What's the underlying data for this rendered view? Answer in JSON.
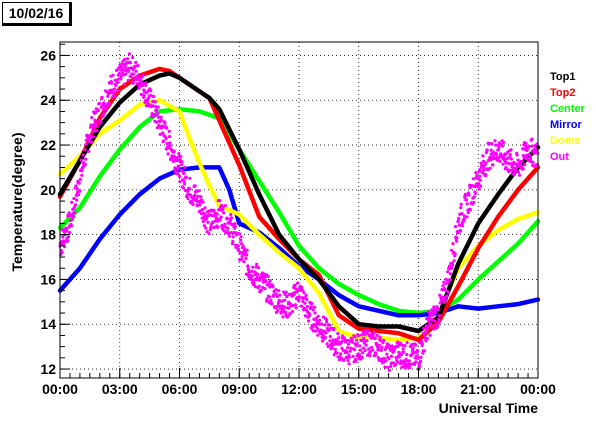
{
  "title": "10/02/16",
  "chart_data": {
    "type": "line",
    "title": "10/02/16",
    "xlabel": "Universal Time",
    "ylabel": "Temperature(degree)",
    "xlim": [
      0,
      24
    ],
    "ylim": [
      11.6,
      26.6
    ],
    "x_ticks": [
      "00:00",
      "03:00",
      "06:00",
      "09:00",
      "12:00",
      "15:00",
      "18:00",
      "21:00",
      "00:00"
    ],
    "y_ticks": [
      12,
      14,
      16,
      18,
      20,
      22,
      24,
      26
    ],
    "grid": true,
    "legend_position": "right",
    "series": [
      {
        "name": "Top1",
        "color": "#000000",
        "x": [
          0,
          1,
          2,
          3,
          4,
          5,
          5.5,
          6,
          7,
          7.5,
          8,
          9,
          10,
          11,
          12,
          13,
          14,
          15,
          16,
          17,
          18,
          19,
          20,
          21,
          22,
          23,
          24
        ],
        "y": [
          19.8,
          21.3,
          22.8,
          23.9,
          24.7,
          25.1,
          25.2,
          25.0,
          24.4,
          24.1,
          23.6,
          21.8,
          19.8,
          18.0,
          16.9,
          16.0,
          14.8,
          14.0,
          13.9,
          13.9,
          13.7,
          14.3,
          16.7,
          18.5,
          19.8,
          21.0,
          21.9
        ]
      },
      {
        "name": "Top2",
        "color": "#ff0000",
        "x": [
          0,
          1,
          2,
          3,
          4,
          5,
          5.5,
          6,
          7,
          7.5,
          8,
          9,
          10,
          11,
          12,
          13,
          14,
          15,
          16,
          17,
          18,
          19,
          20,
          21,
          22,
          23,
          24
        ],
        "y": [
          19.7,
          21.3,
          23.2,
          24.5,
          25.1,
          25.4,
          25.3,
          25.0,
          24.4,
          24.1,
          23.1,
          21.1,
          18.8,
          17.8,
          16.9,
          16.2,
          14.4,
          13.8,
          13.7,
          13.6,
          13.3,
          14.1,
          15.7,
          17.4,
          18.8,
          20.0,
          21.0
        ]
      },
      {
        "name": "Center",
        "color": "#00ff00",
        "x": [
          0,
          1,
          2,
          3,
          4,
          5,
          6,
          7,
          8,
          9,
          10,
          11,
          12,
          13,
          14,
          15,
          16,
          17,
          18,
          19,
          20,
          21,
          22,
          23,
          24
        ],
        "y": [
          18.3,
          19.2,
          20.6,
          21.8,
          22.8,
          23.5,
          23.6,
          23.5,
          23.2,
          21.8,
          20.4,
          19.0,
          17.5,
          16.5,
          15.8,
          15.3,
          14.9,
          14.6,
          14.5,
          14.6,
          15.1,
          16.0,
          16.8,
          17.6,
          18.6
        ]
      },
      {
        "name": "Mirror",
        "color": "#0000ff",
        "x": [
          0,
          1,
          2,
          3,
          4,
          5,
          6,
          7,
          8,
          8.5,
          9,
          10,
          11,
          12,
          13,
          14,
          15,
          16,
          17,
          18,
          19,
          20,
          21,
          22,
          23,
          24
        ],
        "y": [
          15.5,
          16.5,
          17.8,
          18.9,
          19.8,
          20.5,
          20.9,
          21.0,
          21.0,
          20.0,
          18.5,
          18.1,
          17.4,
          16.6,
          16.0,
          15.3,
          14.8,
          14.6,
          14.4,
          14.4,
          14.5,
          14.8,
          14.7,
          14.8,
          14.9,
          15.1
        ]
      },
      {
        "name": "Dome",
        "color": "#ffff00",
        "x": [
          0,
          1,
          2,
          3,
          4,
          5,
          6,
          6.5,
          7,
          7.5,
          8,
          9,
          10,
          11,
          12,
          13,
          14,
          15,
          16,
          17,
          18,
          19,
          19.5,
          20,
          21,
          22,
          23,
          24
        ],
        "y": [
          20.7,
          21.5,
          22.5,
          23.1,
          23.8,
          24.0,
          23.5,
          22.3,
          21.2,
          20.2,
          19.3,
          18.9,
          18.0,
          17.2,
          16.5,
          15.4,
          13.7,
          13.4,
          13.4,
          13.3,
          13.4,
          14.2,
          15.5,
          16.5,
          17.5,
          18.2,
          18.7,
          19.0
        ]
      },
      {
        "name": "Out",
        "color": "#ff00ff",
        "x": [
          0,
          0.5,
          1,
          1.5,
          2,
          2.5,
          3,
          3.5,
          4,
          4.5,
          5,
          5.5,
          6,
          6.5,
          7,
          7.5,
          8,
          8.5,
          9,
          9.5,
          10,
          10.5,
          11,
          11.5,
          12,
          12.5,
          13,
          13.5,
          14,
          14.5,
          15,
          15.5,
          16,
          16.5,
          17,
          17.5,
          18,
          18.5,
          19,
          19.5,
          20,
          20.5,
          21,
          21.5,
          22,
          22.5,
          23,
          23.5,
          24
        ],
        "y": [
          17.5,
          18.5,
          20.5,
          22.5,
          23.5,
          24.5,
          25.0,
          25.5,
          25.0,
          24.0,
          23.0,
          22.0,
          21.0,
          20.0,
          19.5,
          18.5,
          19.0,
          18.5,
          17.5,
          16.5,
          16.0,
          15.5,
          15.0,
          14.8,
          15.5,
          14.5,
          14.0,
          13.5,
          13.0,
          12.8,
          13.0,
          13.2,
          13.0,
          12.5,
          12.7,
          12.6,
          12.5,
          14.0,
          14.5,
          16.0,
          18.5,
          19.5,
          20.5,
          21.5,
          21.8,
          21.3,
          21.0,
          21.8,
          21.5
        ]
      }
    ]
  }
}
